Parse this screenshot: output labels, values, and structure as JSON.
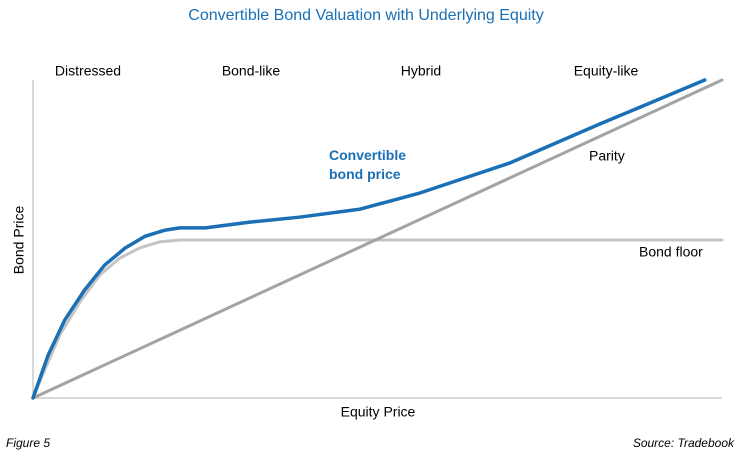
{
  "chart_data": {
    "type": "line",
    "title": "Convertible Bond Valuation with Underlying Equity",
    "x_label": "Equity Price",
    "y_label": "Bond Price",
    "regions": [
      "Distressed",
      "Bond-like",
      "Hybrid",
      "Equity-like"
    ],
    "xlim": [
      0,
      100
    ],
    "ylim": [
      0,
      100
    ],
    "series": [
      {
        "name": "Bond floor",
        "color": "#c4c4c4",
        "x": [
          0,
          1.7,
          3.9,
          6.8,
          9.7,
          12.6,
          15.5,
          18.4,
          21.3,
          100
        ],
        "values": [
          0,
          8.8,
          19.8,
          30.2,
          38.7,
          44,
          47.2,
          49.1,
          49.7,
          49.7
        ]
      },
      {
        "name": "Parity",
        "color": "#a3a3a3",
        "x": [
          0,
          100
        ],
        "values": [
          0,
          100
        ]
      },
      {
        "name": "Convertible bond price",
        "color": "#1a6fb5",
        "x": [
          0,
          2.2,
          4.6,
          7.5,
          10.4,
          13.4,
          16.3,
          19.2,
          21.3,
          25,
          31.5,
          38.8,
          47.5,
          56.2,
          69.2,
          82.3,
          89.6,
          97.5
        ],
        "values": [
          0,
          13.5,
          24.5,
          34,
          41.8,
          47.2,
          50.9,
          52.8,
          53.5,
          53.5,
          55.3,
          56.9,
          59.4,
          64.5,
          73.9,
          86.2,
          92.8,
          100
        ]
      }
    ],
    "figure_label": "Figure 5",
    "source": "Source: Tradebook"
  }
}
